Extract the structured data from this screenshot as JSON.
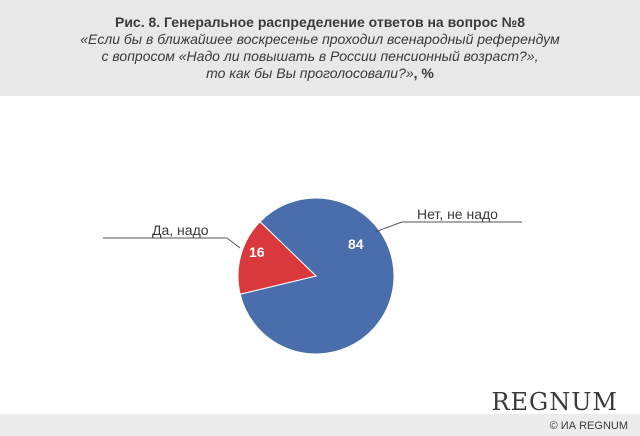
{
  "header": {
    "title": "Рис. 8. Генеральное распределение ответов на вопрос №8",
    "subtitle_line1": "«Если бы в ближайшее воскресенье проходил всенародный референдум",
    "subtitle_line2": "с вопросом «Надо ли повышать в России пенсионный возраст?»,",
    "subtitle_line3": "то как бы Вы проголосовали?»",
    "subtitle_unit": ", %"
  },
  "chart_data": {
    "type": "pie",
    "slices": [
      {
        "label": "Нет, не надо",
        "value": 84,
        "value_label": "84",
        "color": "#4a6eac"
      },
      {
        "label": "Да, надо",
        "value": 16,
        "value_label": "16",
        "color": "#d9393c"
      }
    ]
  },
  "footer": {
    "logo": "REGNUM",
    "copyright": "© ИА REGNUM"
  }
}
